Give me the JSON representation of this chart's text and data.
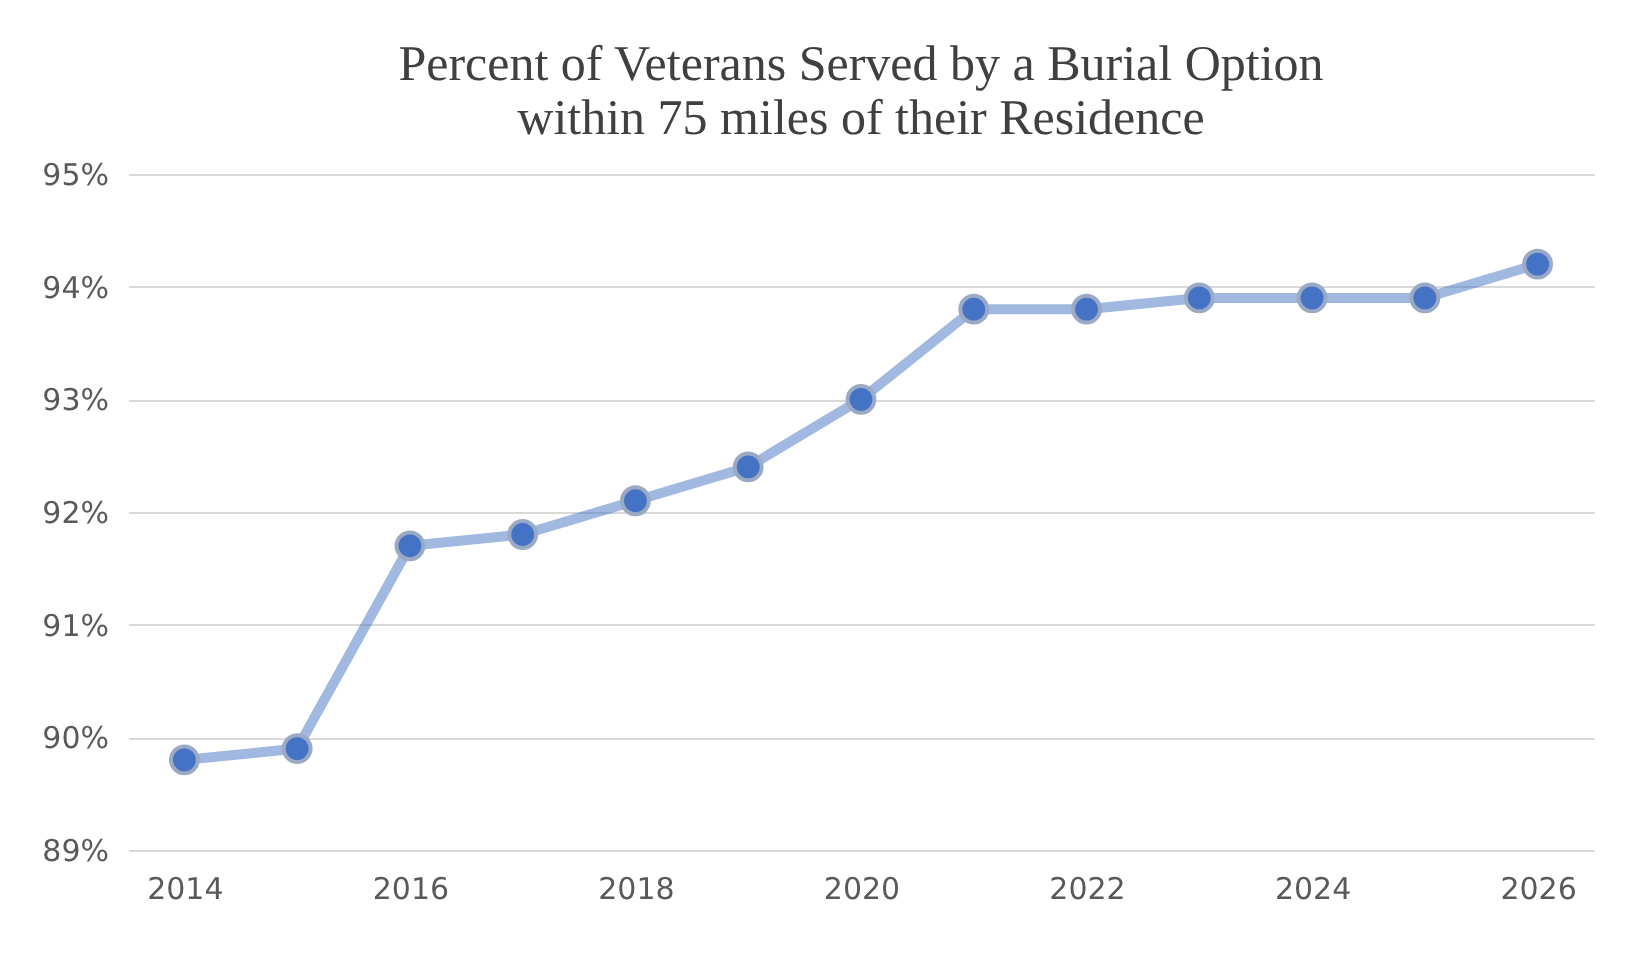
{
  "chart_data": {
    "type": "line",
    "title": [
      "Percent of Veterans Served by a Burial Option",
      "within 75 miles of their Residence"
    ],
    "categories": [
      "2014",
      null,
      "2016",
      null,
      "2018",
      null,
      "2020",
      null,
      "2022",
      null,
      "2024",
      null,
      "2026"
    ],
    "series": [
      {
        "color": "#4472c4",
        "values": [
          89.8,
          89.9,
          91.7,
          91.8,
          92.1,
          92.4,
          93.0,
          93.8,
          93.8,
          93.9,
          93.9,
          93.9,
          94.2
        ]
      }
    ],
    "ylim": [
      89,
      95
    ],
    "yticks": [
      {
        "value": 89,
        "label": "89%"
      },
      {
        "value": 90,
        "label": "90%"
      },
      {
        "value": 91,
        "label": "91%"
      },
      {
        "value": 92,
        "label": "92%"
      },
      {
        "value": 93,
        "label": "93%"
      },
      {
        "value": 94,
        "label": "94%"
      },
      {
        "value": 95,
        "label": "95%"
      }
    ],
    "grid": "y",
    "marker": "circle",
    "line_style": "solid"
  }
}
